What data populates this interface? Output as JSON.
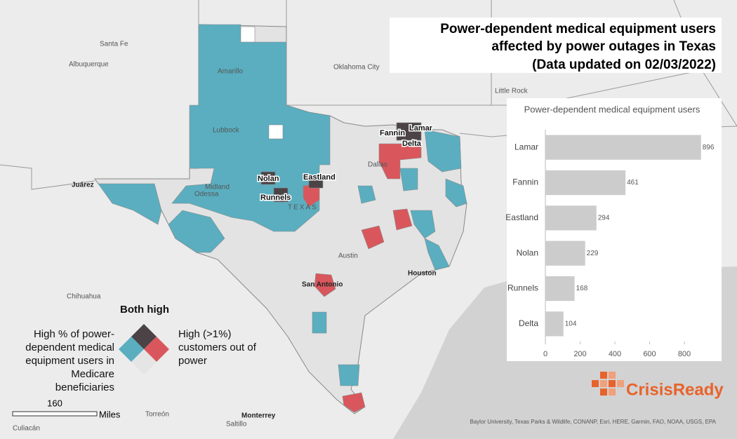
{
  "title": [
    "Power-dependent medical equipment users",
    "affected by power outages in Texas",
    "(Data updated on 02/03/2022)"
  ],
  "map_labels": [
    "Santa Fe",
    "Albuquerque",
    "Oklahoma City",
    "Little Rock",
    "Amarillo",
    "Lubbock",
    "Juárez",
    "Midland",
    "Odessa",
    "TEXAS",
    "Dallas",
    "Austin",
    "San Antonio",
    "Houston",
    "Chihuahua",
    "Torreón",
    "Monterrey",
    "Saltillo",
    "Culiacán"
  ],
  "counties": [
    "Fannin",
    "Lamar",
    "Delta",
    "Nolan",
    "Eastland",
    "Runnels"
  ],
  "legend": {
    "both": "Both high",
    "left": [
      "High % of power-",
      "dependent medical",
      "equipment users in",
      "Medicare",
      "beneficiaries"
    ],
    "right": [
      "High (>1%)",
      "customers out of",
      "power"
    ]
  },
  "scale": {
    "distance": "160",
    "unit": "Miles"
  },
  "credits": "Baylor University, Texas Parks & Wildlife, CONANP, Esri, HERE, Garmin, FAO, NOAA, USGS, EPA",
  "logo": "CrisisReady",
  "chart_data": {
    "type": "bar",
    "orientation": "horizontal",
    "title": "Power-dependent medical equipment users",
    "categories": [
      "Lamar",
      "Fannin",
      "Eastland",
      "Nolan",
      "Runnels",
      "Delta"
    ],
    "values": [
      896,
      461,
      294,
      229,
      168,
      104
    ],
    "color": "#cccccc",
    "xlim": [
      0,
      900
    ],
    "xticks": [
      0,
      200,
      400,
      600,
      800
    ]
  }
}
